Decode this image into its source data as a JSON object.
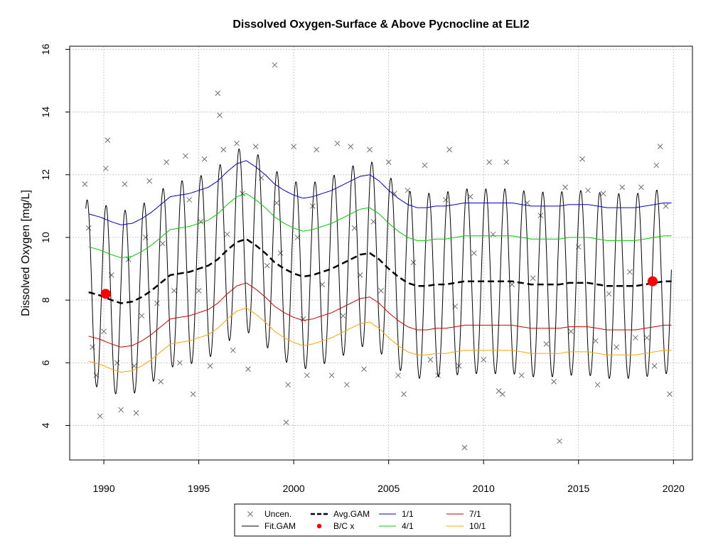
{
  "chart_data": {
    "type": "line",
    "title": "Dissolved Oxygen-Surface & Above Pycnocline at ELI2",
    "xlabel": "",
    "ylabel": "Dissolved Oxygen [mg/L]",
    "xlim": [
      1988.2,
      2021.0
    ],
    "ylim": [
      2.9,
      16.1
    ],
    "xticks": [
      1990,
      1995,
      2000,
      2005,
      2010,
      2015,
      2020
    ],
    "yticks": [
      4,
      6,
      8,
      10,
      12,
      14,
      16
    ],
    "grid": true,
    "legend_position": "bottom",
    "legend": [
      {
        "label": "Uncen.",
        "kind": "x-marker",
        "color": "#6e6e6e"
      },
      {
        "label": "Fit.GAM",
        "kind": "line",
        "color": "#000000"
      },
      {
        "label": "Avg.GAM",
        "kind": "dashed-line",
        "color": "#000000"
      },
      {
        "label": "B/C x",
        "kind": "dot",
        "color": "#ff0000"
      },
      {
        "label": "1/1",
        "kind": "line",
        "color": "#0000cd"
      },
      {
        "label": "4/1",
        "kind": "line",
        "color": "#00cc00"
      },
      {
        "label": "7/1",
        "kind": "line",
        "color": "#cc0000"
      },
      {
        "label": "10/1",
        "kind": "line",
        "color": "#ffa500"
      }
    ],
    "colors": {
      "fit": "#000000",
      "avg": "#000000",
      "d1_1": "#0000cd",
      "d4_1": "#00cc00",
      "d7_1": "#cc0000",
      "d10_1": "#ffa500",
      "obs": "#6e6e6e",
      "bc": "#ff0000"
    },
    "avg_gam": {
      "x": [
        1989.2,
        1989.8,
        1990.4,
        1990.9,
        1991.5,
        1992.0,
        1992.5,
        1993.0,
        1993.5,
        1994.0,
        1994.5,
        1995.0,
        1995.5,
        1996.0,
        1996.5,
        1997.0,
        1997.5,
        1998.0,
        1998.5,
        1999.0,
        1999.5,
        2000.0,
        2000.5,
        2001.0,
        2001.5,
        2002.0,
        2002.5,
        2003.0,
        2003.5,
        2004.0,
        2004.5,
        2005.0,
        2005.5,
        2006.0,
        2006.5,
        2007.0,
        2007.5,
        2008.0,
        2008.5,
        2009.0,
        2009.5,
        2010.0,
        2010.5,
        2011.0,
        2011.5,
        2012.0,
        2012.5,
        2013.0,
        2013.5,
        2014.0,
        2014.5,
        2015.0,
        2015.5,
        2016.0,
        2016.5,
        2017.0,
        2017.5,
        2018.0,
        2018.5,
        2019.0,
        2019.5,
        2019.9
      ],
      "y": [
        8.25,
        8.15,
        8.0,
        7.9,
        7.95,
        8.1,
        8.3,
        8.55,
        8.8,
        8.85,
        8.9,
        9.0,
        9.1,
        9.3,
        9.6,
        9.85,
        9.95,
        9.75,
        9.5,
        9.2,
        9.0,
        8.85,
        8.75,
        8.8,
        8.9,
        9.0,
        9.15,
        9.3,
        9.45,
        9.5,
        9.3,
        9.0,
        8.75,
        8.55,
        8.45,
        8.45,
        8.5,
        8.5,
        8.55,
        8.6,
        8.6,
        8.6,
        8.6,
        8.6,
        8.6,
        8.55,
        8.5,
        8.5,
        8.5,
        8.5,
        8.55,
        8.55,
        8.55,
        8.5,
        8.45,
        8.45,
        8.45,
        8.45,
        8.5,
        8.55,
        8.6,
        8.6
      ]
    },
    "seasonal_offsets": {
      "d1_1": 2.5,
      "d4_1": 1.45,
      "d7_1": -1.4,
      "d10_1": -2.2
    },
    "fit_gam": {
      "amplitude": 2.95,
      "peak_month_fraction": 0.12
    },
    "bc_points": {
      "x": [
        1990.1,
        2018.9
      ],
      "y": [
        8.2,
        8.6
      ]
    },
    "observations": {
      "x": [
        1989.0,
        1989.2,
        1989.4,
        1989.6,
        1989.8,
        1990.0,
        1990.1,
        1990.2,
        1990.4,
        1990.7,
        1990.9,
        1991.1,
        1991.3,
        1991.6,
        1991.7,
        1992.0,
        1992.2,
        1992.4,
        1992.8,
        1993.0,
        1993.1,
        1993.3,
        1993.7,
        1994.0,
        1994.3,
        1994.5,
        1994.7,
        1995.0,
        1995.1,
        1995.3,
        1995.6,
        1996.0,
        1996.1,
        1996.3,
        1996.5,
        1996.8,
        1997.0,
        1997.3,
        1997.6,
        1998.0,
        1998.3,
        1998.6,
        1999.0,
        1999.1,
        1999.3,
        1999.6,
        1999.7,
        2000.0,
        2000.2,
        2000.5,
        2000.7,
        2001.0,
        2001.2,
        2001.5,
        2002.0,
        2002.3,
        2002.6,
        2002.8,
        2003.0,
        2003.2,
        2003.5,
        2003.7,
        2004.0,
        2004.2,
        2004.6,
        2005.0,
        2005.3,
        2005.5,
        2005.8,
        2006.0,
        2006.3,
        2006.9,
        2007.2,
        2007.6,
        2008.0,
        2008.2,
        2008.5,
        2008.7,
        2009.0,
        2009.3,
        2009.5,
        2010.0,
        2010.3,
        2010.5,
        2010.8,
        2011.0,
        2011.2,
        2011.5,
        2012.0,
        2012.3,
        2012.6,
        2013.0,
        2013.3,
        2013.7,
        2014.0,
        2014.3,
        2014.6,
        2015.0,
        2015.2,
        2015.5,
        2015.9,
        2016.0,
        2016.3,
        2016.6,
        2017.0,
        2017.3,
        2017.7,
        2018.0,
        2018.3,
        2018.6,
        2019.0,
        2019.1,
        2019.3,
        2019.6,
        2019.8
      ],
      "y": [
        11.7,
        10.3,
        6.5,
        5.6,
        4.3,
        7.0,
        12.2,
        13.1,
        8.8,
        6.0,
        4.5,
        11.7,
        9.3,
        5.9,
        4.4,
        7.5,
        10.0,
        11.8,
        7.9,
        5.4,
        9.8,
        12.4,
        8.3,
        6.0,
        12.6,
        11.2,
        5.0,
        8.3,
        10.5,
        12.5,
        5.9,
        14.6,
        13.9,
        12.8,
        10.1,
        6.4,
        13.0,
        11.4,
        5.8,
        12.9,
        11.9,
        9.1,
        15.5,
        11.1,
        9.5,
        4.1,
        5.3,
        12.9,
        10.0,
        7.4,
        5.6,
        11.0,
        12.8,
        8.5,
        5.6,
        13.0,
        7.5,
        5.3,
        12.9,
        10.3,
        8.8,
        5.8,
        12.8,
        10.5,
        8.3,
        12.4,
        11.4,
        5.6,
        5.0,
        11.5,
        9.2,
        12.3,
        6.1,
        5.6,
        11.2,
        12.8,
        7.8,
        5.9,
        3.3,
        11.3,
        9.5,
        6.1,
        12.4,
        10.1,
        5.1,
        5.0,
        12.4,
        8.5,
        5.6,
        11.1,
        8.7,
        10.7,
        6.6,
        5.4,
        3.5,
        11.6,
        7.0,
        9.7,
        12.5,
        11.5,
        6.7,
        5.3,
        11.4,
        8.2,
        6.5,
        11.6,
        8.9,
        6.8,
        11.6,
        6.8,
        5.9,
        12.3,
        12.9,
        11.0,
        5.0
      ]
    }
  }
}
